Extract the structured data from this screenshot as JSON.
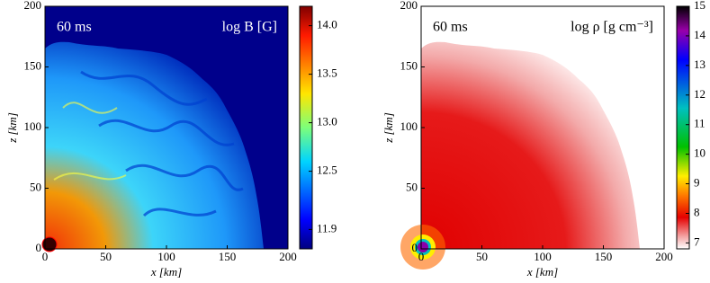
{
  "chart_data": [
    {
      "type": "heatmap",
      "time_label": "60 ms",
      "quantity_label": "log B [G]",
      "xlabel": "x [km]",
      "ylabel": "z [km]",
      "xlim": [
        0,
        200
      ],
      "ylim": [
        0,
        200
      ],
      "xticks": [
        0,
        50,
        100,
        150,
        200
      ],
      "yticks": [
        0,
        50,
        100,
        150,
        200
      ],
      "colorbar": {
        "lim": [
          11.7,
          14.2
        ],
        "ticks": [
          {
            "value": 11.9,
            "label": "11.9"
          },
          12.5,
          {
            "value": 13.0,
            "label": "13.0"
          },
          13.5,
          {
            "value": 14.0,
            "label": "14.0"
          }
        ],
        "colormap": "jet"
      }
    },
    {
      "type": "heatmap",
      "time_label": "60 ms",
      "quantity_label": "log ρ [g cm⁻³]",
      "xlabel": "x [km]",
      "ylabel": "z [km]",
      "xlim": [
        0,
        200
      ],
      "ylim": [
        0,
        200
      ],
      "xticks": [
        0,
        50,
        100,
        150,
        200
      ],
      "yticks": [
        0,
        50,
        100,
        150,
        200
      ],
      "colorbar": {
        "lim": [
          6.8,
          15
        ],
        "ticks": [
          7,
          8,
          9,
          10,
          11,
          12,
          13,
          14,
          15
        ],
        "colormap": "density"
      }
    }
  ]
}
